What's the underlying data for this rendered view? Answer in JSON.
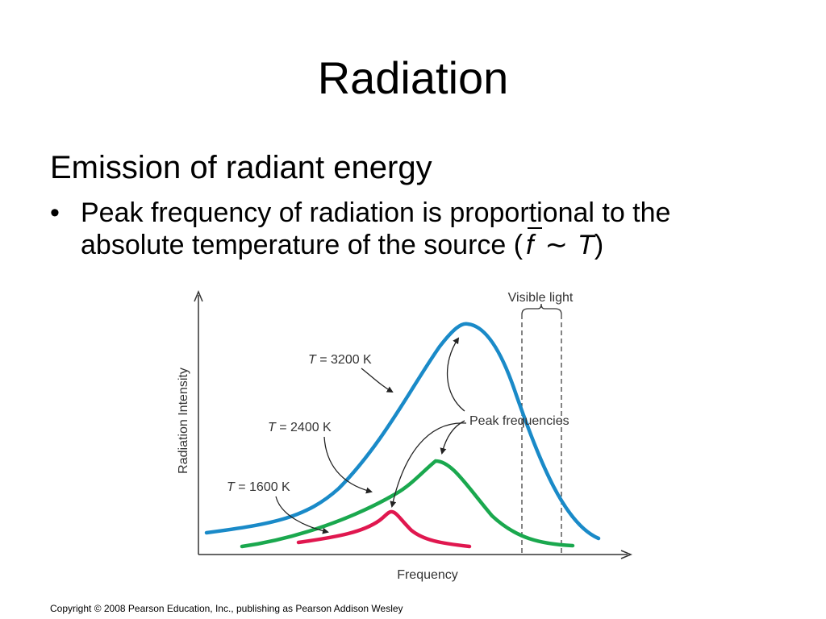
{
  "slide": {
    "title": "Radiation",
    "subheading": "Emission of radiant energy",
    "bullet": {
      "marker": "•",
      "line1": "Peak frequency of radiation is proportional to the",
      "line2_prefix": "absolute temperature of the source (",
      "formula_f": "f",
      "formula_sim": "∼",
      "formula_T": "T",
      "line2_suffix": ")"
    },
    "copyright": "Copyright © 2008 Pearson Education, Inc., publishing as Pearson Addison Wesley"
  },
  "diagram": {
    "y_axis_label": "Radiation Intensity",
    "x_axis_label": "Frequency",
    "visible_light_label": "Visible light",
    "peak_label": "Peak frequencies",
    "curves": [
      {
        "T_var": "T",
        "label_rest": " = 3200 K",
        "color": "#1a8ac8"
      },
      {
        "T_var": "T",
        "label_rest": " = 2400 K",
        "color": "#1aa84e"
      },
      {
        "T_var": "T",
        "label_rest": " = 1600 K",
        "color": "#e0174f"
      }
    ]
  }
}
